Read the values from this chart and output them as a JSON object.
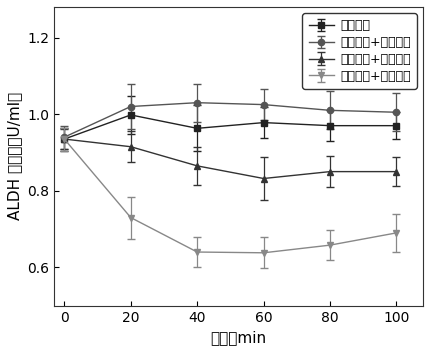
{
  "x": [
    0,
    20,
    40,
    60,
    80,
    100
  ],
  "series": [
    {
      "label": "生理盐水",
      "y": [
        0.935,
        0.998,
        0.963,
        0.978,
        0.97,
        0.97
      ],
      "yerr": [
        0.03,
        0.05,
        0.06,
        0.04,
        0.04,
        0.035
      ],
      "color": "#222222",
      "marker": "s",
      "linestyle": "-"
    },
    {
      "label": "解酒果冻+生理盐水",
      "y": [
        0.94,
        1.02,
        1.03,
        1.025,
        1.01,
        1.005
      ],
      "yerr": [
        0.03,
        0.06,
        0.05,
        0.04,
        0.05,
        0.05
      ],
      "color": "#555555",
      "marker": "o",
      "linestyle": "-"
    },
    {
      "label": "解酒果冻+无水乙醇",
      "y": [
        0.935,
        0.915,
        0.865,
        0.832,
        0.85,
        0.85
      ],
      "yerr": [
        0.025,
        0.04,
        0.05,
        0.055,
        0.04,
        0.038
      ],
      "color": "#333333",
      "marker": "^",
      "linestyle": "-"
    },
    {
      "label": "无水乙醇+生理盐水",
      "y": [
        0.935,
        0.73,
        0.64,
        0.638,
        0.658,
        0.69
      ],
      "yerr": [
        0.03,
        0.055,
        0.04,
        0.04,
        0.04,
        0.05
      ],
      "color": "#888888",
      "marker": "v",
      "linestyle": "-"
    }
  ],
  "xlabel": "时间／min",
  "ylabel": "ALDH 酶活／（U/ml）",
  "xlim": [
    -3,
    108
  ],
  "ylim": [
    0.5,
    1.28
  ],
  "yticks": [
    0.6,
    0.8,
    1.0,
    1.2
  ],
  "xticks": [
    0,
    20,
    40,
    60,
    80,
    100
  ],
  "legend_loc": "upper right",
  "background_color": "#ffffff",
  "axes_background": "#ffffff",
  "tick_fontsize": 10,
  "label_fontsize": 11,
  "legend_fontsize": 9
}
